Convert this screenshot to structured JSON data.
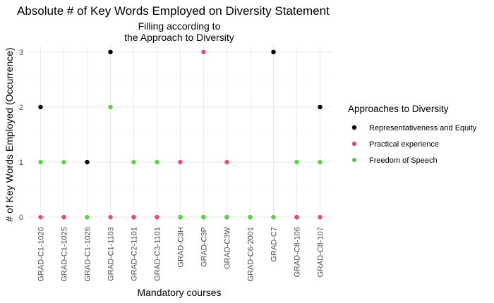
{
  "chart_data": {
    "type": "scatter",
    "title": "Absolute # of Key Words Employed on Diversity Statement",
    "subtitle_lines": [
      "Filling according to",
      "the Approach to Diversity"
    ],
    "xlabel": "Mandatory courses",
    "ylabel": "# of Key Words Employed (Occurrence)",
    "categories": [
      "GRAD-C1-1020",
      "GRAD-C1-1025",
      "GRAD-C1-1026",
      "GRAD-C1-1103",
      "GRAD-C2-1101",
      "GRAD-C3-1101",
      "GRAD-C3H",
      "GRAD-C3P",
      "GRAD-C3W",
      "GRAD-C6-2001",
      "GRAD-C7",
      "GRAD-C8-106",
      "GRAD-C8-107"
    ],
    "yticks": [
      0,
      1,
      2,
      3
    ],
    "ylim": [
      -0.1,
      3.1
    ],
    "grid": true,
    "legend_position": "right",
    "legend_title": "Approaches to Diversity",
    "series": [
      {
        "name": "Representativeness and Equity",
        "color": "#000000",
        "values": [
          2,
          0,
          1,
          3,
          0,
          0,
          0,
          0,
          0,
          0,
          3,
          0,
          2
        ]
      },
      {
        "name": "Practical experience",
        "color": "#df536b",
        "values": [
          0,
          0,
          0,
          0,
          0,
          0,
          1,
          3,
          1,
          0,
          0,
          0,
          0
        ]
      },
      {
        "name": "Freedom of Speech",
        "color": "#61d04f",
        "values": [
          1,
          1,
          0,
          2,
          1,
          1,
          0,
          0,
          0,
          0,
          0,
          1,
          1
        ]
      }
    ]
  }
}
